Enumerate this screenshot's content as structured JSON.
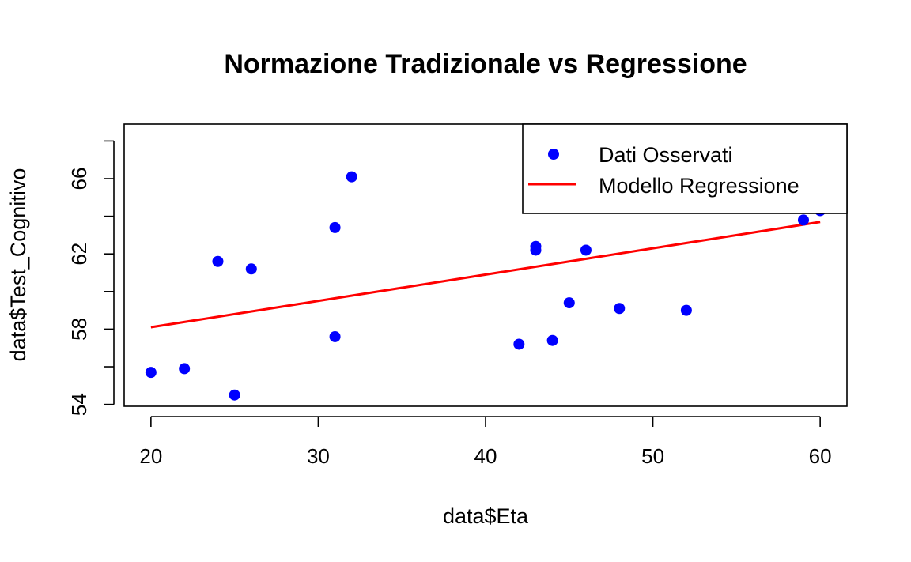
{
  "chart_data": {
    "type": "scatter",
    "title": "Normazione Tradizionale vs Regressione",
    "xlabel": "data$Eta",
    "ylabel": "data$Test_Cognitivo",
    "xlim": [
      18.4,
      61.6
    ],
    "ylim": [
      53.9,
      68.9
    ],
    "x_ticks": [
      20,
      30,
      40,
      50,
      60
    ],
    "y_ticks": [
      54,
      58,
      62,
      66
    ],
    "y_minor_ticks": [
      56,
      60,
      64,
      68
    ],
    "grid": false,
    "legend_position": "top-right",
    "series": [
      {
        "name": "Dati Osservati",
        "kind": "points",
        "color": "#0000ff",
        "points": [
          {
            "x": 20,
            "y": 55.7
          },
          {
            "x": 22,
            "y": 55.9
          },
          {
            "x": 24,
            "y": 61.6
          },
          {
            "x": 25,
            "y": 54.5
          },
          {
            "x": 26,
            "y": 61.2
          },
          {
            "x": 31,
            "y": 63.4
          },
          {
            "x": 31,
            "y": 57.6
          },
          {
            "x": 32,
            "y": 66.1
          },
          {
            "x": 42,
            "y": 57.2
          },
          {
            "x": 43,
            "y": 62.4
          },
          {
            "x": 43,
            "y": 62.2
          },
          {
            "x": 44,
            "y": 57.4
          },
          {
            "x": 45,
            "y": 59.4
          },
          {
            "x": 46,
            "y": 62.2
          },
          {
            "x": 48,
            "y": 59.1
          },
          {
            "x": 52,
            "y": 59.0
          },
          {
            "x": 59,
            "y": 63.8
          },
          {
            "x": 60,
            "y": 64.3
          }
        ]
      },
      {
        "name": "Modello Regressione",
        "kind": "line",
        "color": "#ff0000",
        "points": [
          {
            "x": 20,
            "y": 58.1
          },
          {
            "x": 60,
            "y": 63.7
          }
        ]
      }
    ]
  }
}
